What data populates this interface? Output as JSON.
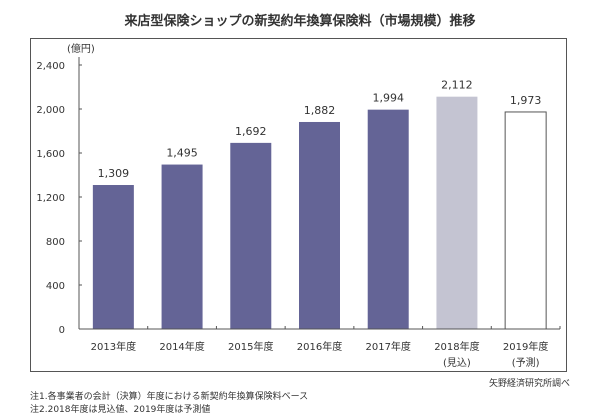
{
  "chart_data": {
    "type": "bar",
    "title": "来店型保険ショップの新契約年換算保険料（市場規模）推移",
    "ylabel": "(億円)",
    "xlabel": "",
    "ylim": [
      0,
      2400
    ],
    "yticks": [
      0,
      400,
      800,
      1200,
      1600,
      2000,
      2400
    ],
    "ytick_labels": [
      "0",
      "400",
      "800",
      "1,200",
      "1,600",
      "2,000",
      "2,400"
    ],
    "grid": false,
    "categories": [
      "2013年度",
      "2014年度",
      "2015年度",
      "2016年度",
      "2017年度",
      "2018年度",
      "2019年度"
    ],
    "category_sublabels": [
      "",
      "",
      "",
      "",
      "",
      "(見込)",
      "(予測)"
    ],
    "values": [
      1309,
      1495,
      1692,
      1882,
      1994,
      2112,
      1973
    ],
    "value_labels": [
      "1,309",
      "1,495",
      "1,692",
      "1,882",
      "1,994",
      "2,112",
      "1,973"
    ],
    "bar_styles": [
      "actual",
      "actual",
      "actual",
      "actual",
      "actual",
      "estimate",
      "forecast"
    ],
    "colors": {
      "actual": "#646496",
      "estimate": "#c4c4d2",
      "forecast": "#ffffff",
      "forecast_border": "#555555",
      "axis": "#555555"
    }
  },
  "credit": "矢野経済研究所調べ",
  "notes": [
    "注1.各事業者の会計（決算）年度における新契約年換算保険料ベース",
    "注2.2018年度は見込値、2019年度は予測値"
  ]
}
